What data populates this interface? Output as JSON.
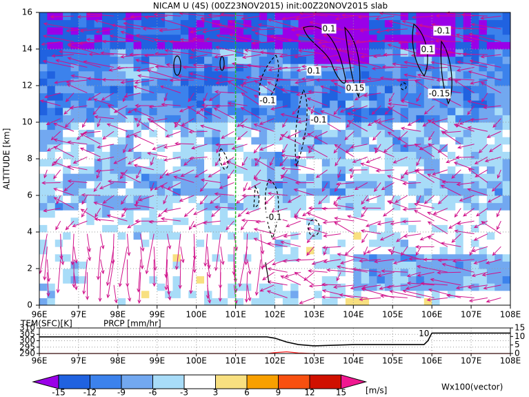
{
  "chart_data": [
    {
      "type": "contour",
      "title": "NICAM U (4S) (00Z23NOV2015) init:00Z20NOV2015 slab",
      "y_label": "ALTITUDE [km]",
      "xlim": [
        96,
        108
      ],
      "xticks": [
        {
          "value": 96,
          "label": "96E"
        },
        {
          "value": 97,
          "label": "97E"
        },
        {
          "value": 98,
          "label": "98E"
        },
        {
          "value": 99,
          "label": "99E"
        },
        {
          "value": 100,
          "label": "100E"
        },
        {
          "value": 101,
          "label": "101E"
        },
        {
          "value": 102,
          "label": "102E"
        },
        {
          "value": 103,
          "label": "103E"
        },
        {
          "value": 104,
          "label": "104E"
        },
        {
          "value": 105,
          "label": "105E"
        },
        {
          "value": 106,
          "label": "106E"
        },
        {
          "value": 107,
          "label": "107E"
        },
        {
          "value": 108,
          "label": "108E"
        }
      ],
      "ylim": [
        0,
        16
      ],
      "yticks": [
        0,
        2,
        4,
        6,
        8,
        10,
        12,
        14,
        16
      ],
      "grid": true,
      "marker_x": 101,
      "marker_color": "#22bb22",
      "contour_labels": [
        "0.1",
        "-0.1",
        "0.1",
        "0.1",
        "0.15",
        "-0.15",
        "-0.1",
        "-0.1",
        "-0.1"
      ]
    },
    {
      "type": "line",
      "xlim": [
        96,
        108
      ],
      "xticks": [
        {
          "value": 96,
          "label": "96E"
        },
        {
          "value": 97,
          "label": "97E"
        },
        {
          "value": 98,
          "label": "98E"
        },
        {
          "value": 99,
          "label": "99E"
        },
        {
          "value": 100,
          "label": "100E"
        },
        {
          "value": 101,
          "label": "101E"
        },
        {
          "value": 102,
          "label": "102E"
        },
        {
          "value": 103,
          "label": "103E"
        },
        {
          "value": 104,
          "label": "104E"
        },
        {
          "value": 105,
          "label": "105E"
        },
        {
          "value": 106,
          "label": "106E"
        },
        {
          "value": 107,
          "label": "107E"
        },
        {
          "value": 108,
          "label": "108E"
        }
      ],
      "ylim": [
        290,
        310
      ],
      "yticks": [
        290,
        295,
        300,
        305,
        310
      ],
      "y2lim": [
        0,
        15
      ],
      "y2ticks": [
        0,
        5,
        10,
        15
      ],
      "grid": true,
      "x": [
        96,
        101.8,
        102,
        102.3,
        102.6,
        103,
        104,
        105,
        105.8,
        105.9,
        106,
        107,
        108
      ],
      "series": [
        {
          "name": "TEM(SFC)[K]",
          "color": "#000000",
          "values": [
            303,
            303,
            302,
            299,
            297,
            296,
            297,
            297,
            297,
            300,
            306,
            306,
            306
          ]
        },
        {
          "name": "PRCP [mm/hr]",
          "color": "#ff2020",
          "axis": "y2",
          "values": [
            0,
            0,
            0.5,
            1,
            0.3,
            0,
            0,
            0,
            0,
            0,
            0,
            0,
            0
          ]
        }
      ],
      "annotation": "10"
    },
    {
      "type": "colorbar",
      "levels": [
        -15,
        -12,
        -9,
        -6,
        -3,
        3,
        6,
        9,
        12,
        15
      ],
      "colors": [
        "#9a00e8",
        "#2062e0",
        "#3c82ec",
        "#72a8f0",
        "#a8dcf8",
        "#ffffff",
        "#f8e080",
        "#f8a000",
        "#f85010",
        "#d01000",
        "#f01890"
      ],
      "unit": "[m/s]",
      "vector_label": "Wx100(vector)",
      "vector_color": "#d0108a"
    }
  ]
}
